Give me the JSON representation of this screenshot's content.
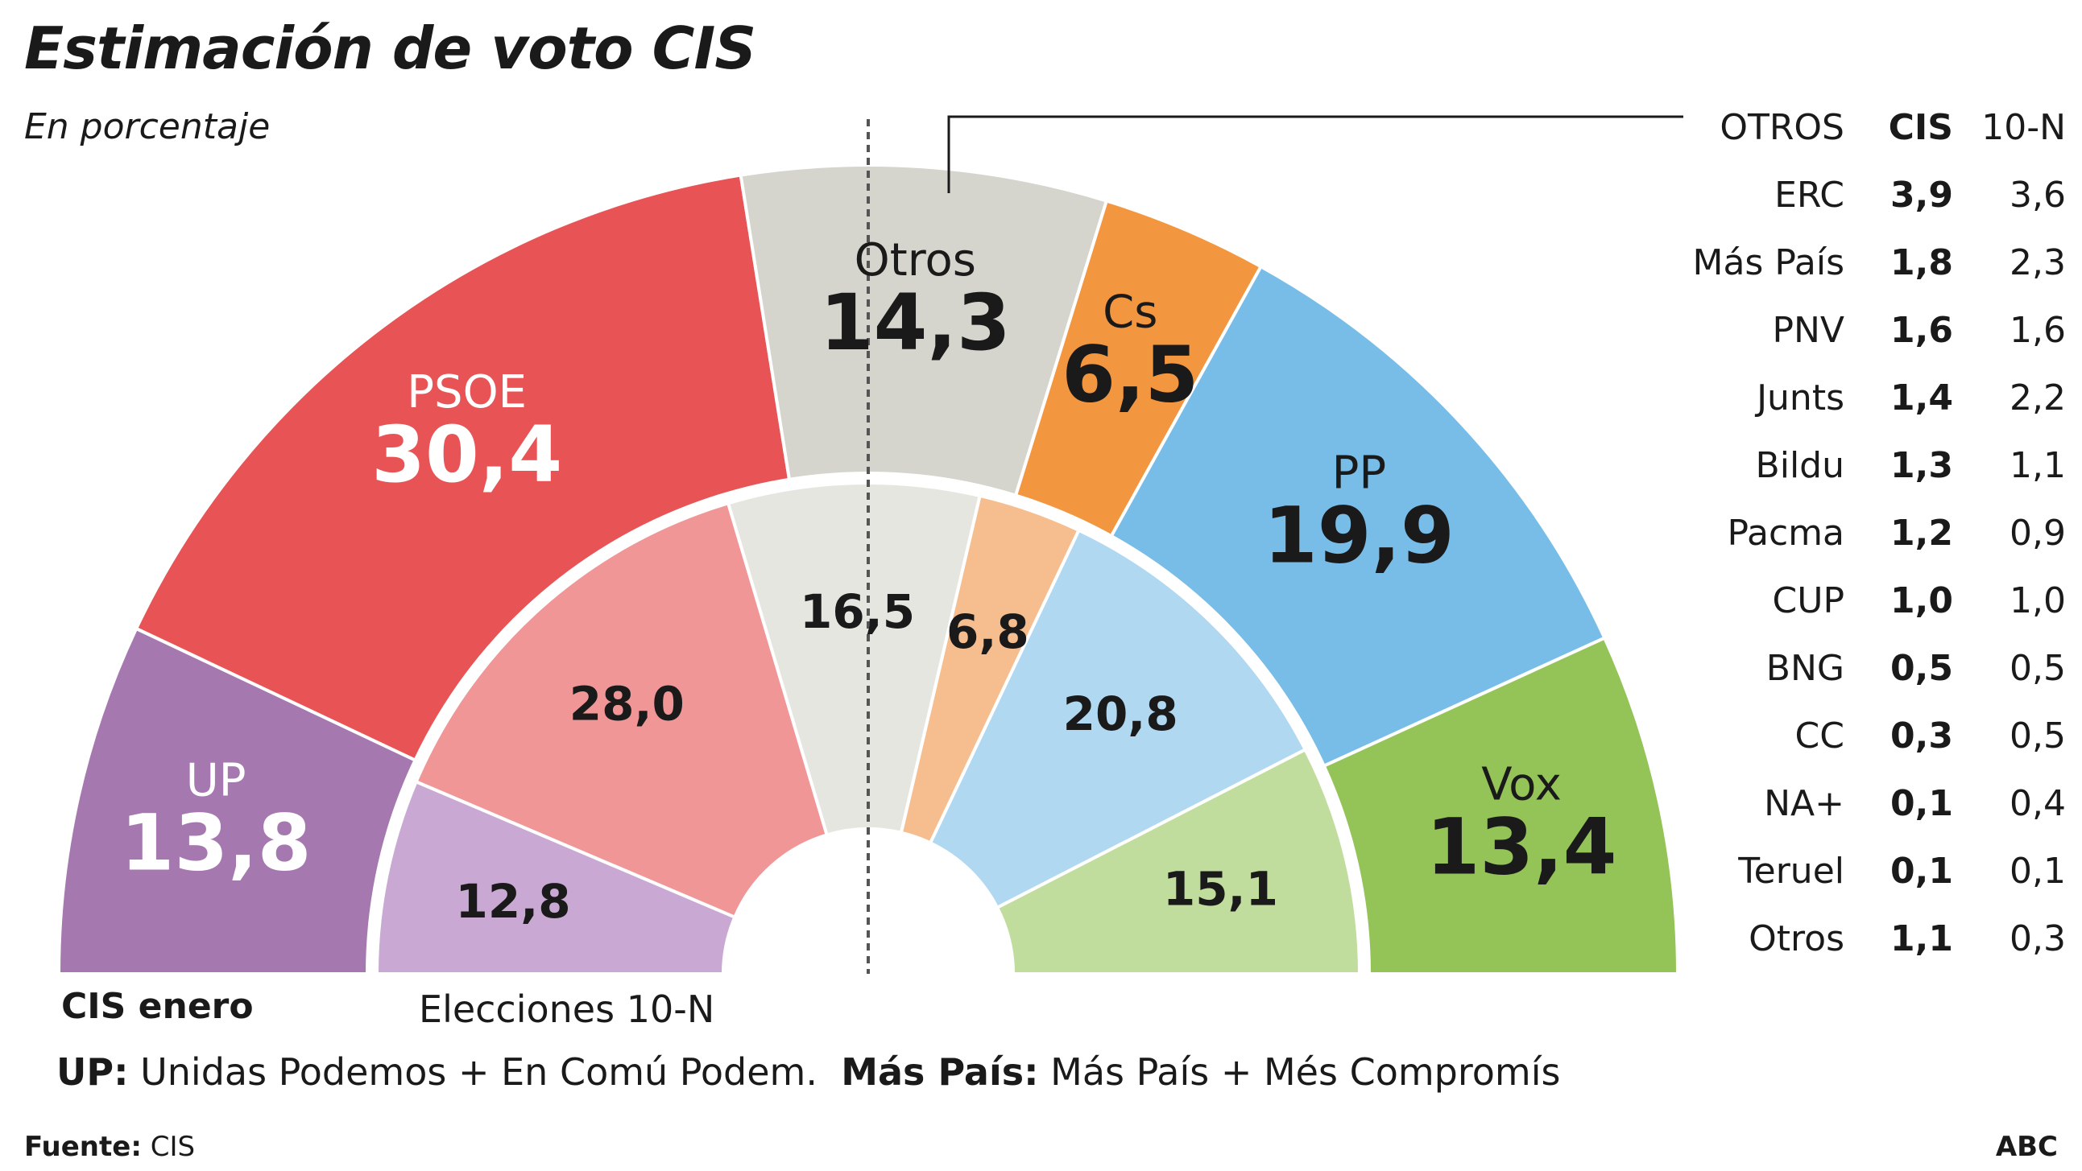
{
  "title": "Estimación de voto CIS",
  "subtitle": "En porcentaje",
  "labels": {
    "cis": "CIS enero",
    "previous": "Elecciones 10-N"
  },
  "note": {
    "up_key": "UP:",
    "up_text": " Unidas Podemos + En Comú Podem.",
    "mp_key": "Más País:",
    "mp_text": " Más País + Més Compromís"
  },
  "source": {
    "key": "Fuente:",
    "text": " CIS"
  },
  "brand": "ABC",
  "chart_data": {
    "type": "pie",
    "subtype": "double-half-donut",
    "title": "Estimación de voto CIS",
    "subtitle": "En porcentaje",
    "outer_ring_label": "CIS enero",
    "inner_ring_label": "Elecciones 10-N",
    "parties": [
      {
        "name": "UP",
        "cis": 13.8,
        "cis_label": "13,8",
        "prev": 12.8,
        "prev_label": "12,8",
        "color": "#a678b0",
        "color_inner": "#c9a9d3"
      },
      {
        "name": "PSOE",
        "cis": 30.4,
        "cis_label": "30,4",
        "prev": 28.0,
        "prev_label": "28,0",
        "color": "#e85455",
        "color_inner": "#f09697"
      },
      {
        "name": "Otros",
        "cis": 14.3,
        "cis_label": "14,3",
        "prev": 16.5,
        "prev_label": "16,5",
        "color": "#d5d5cd",
        "color_inner": "#e6e6e1"
      },
      {
        "name": "Cs",
        "cis": 6.5,
        "cis_label": "6,5",
        "prev": 6.8,
        "prev_label": "6,8",
        "color": "#f29640",
        "color_inner": "#f6be8f"
      },
      {
        "name": "PP",
        "cis": 19.9,
        "cis_label": "19,9",
        "prev": 20.8,
        "prev_label": "20,8",
        "color": "#78bde8",
        "color_inner": "#b0d8f1"
      },
      {
        "name": "Vox",
        "cis": 13.4,
        "cis_label": "13,4",
        "prev": 15.1,
        "prev_label": "15,1",
        "color": "#94c357",
        "color_inner": "#c1dd9e"
      }
    ],
    "others_table": {
      "header": [
        "OTROS",
        "CIS",
        "10-N"
      ],
      "rows": [
        {
          "name": "ERC",
          "cis": "3,9",
          "prev": "3,6"
        },
        {
          "name": "Más País",
          "cis": "1,8",
          "prev": "2,3"
        },
        {
          "name": "PNV",
          "cis": "1,6",
          "prev": "1,6"
        },
        {
          "name": "Junts",
          "cis": "1,4",
          "prev": "2,2"
        },
        {
          "name": "Bildu",
          "cis": "1,3",
          "prev": "1,1"
        },
        {
          "name": "Pacma",
          "cis": "1,2",
          "prev": "0,9"
        },
        {
          "name": "CUP",
          "cis": "1,0",
          "prev": "1,0"
        },
        {
          "name": "BNG",
          "cis": "0,5",
          "prev": "0,5"
        },
        {
          "name": "CC",
          "cis": "0,3",
          "prev": "0,5"
        },
        {
          "name": "NA+",
          "cis": "0,1",
          "prev": "0,4"
        },
        {
          "name": "Teruel",
          "cis": "0,1",
          "prev": "0,1"
        },
        {
          "name": "Otros",
          "cis": "1,1",
          "prev": "0,3"
        }
      ]
    }
  }
}
